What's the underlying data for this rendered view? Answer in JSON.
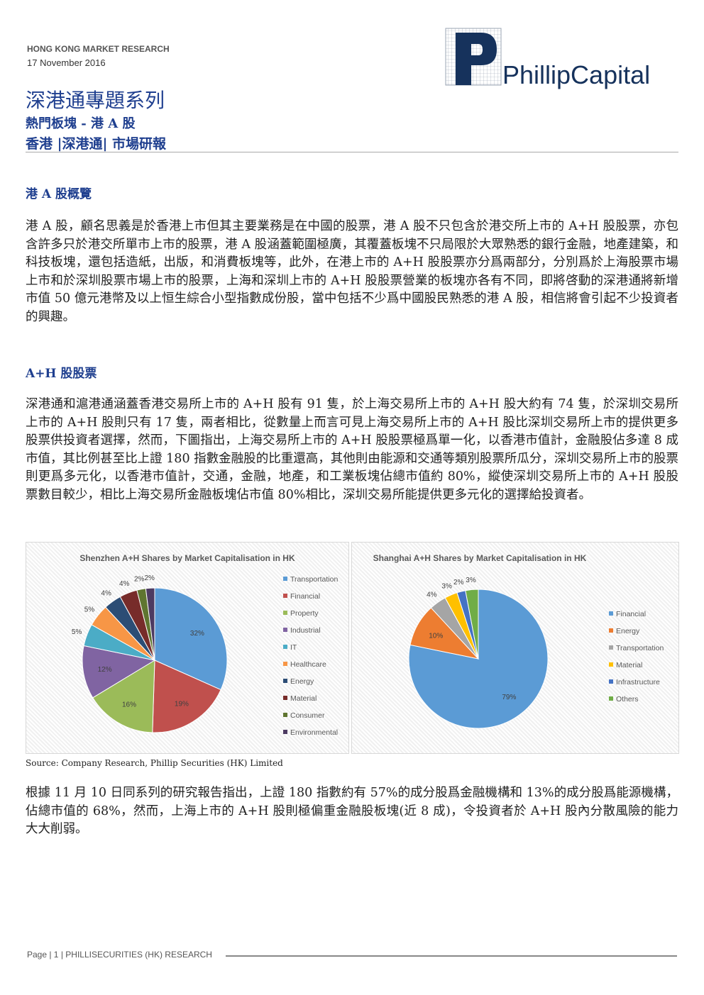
{
  "header": {
    "org": "HONG KONG MARKET RESEARCH",
    "date": "17 November 2016",
    "brand": "PhillipCapital",
    "title": "深港通專題系列",
    "subtitle": "熱門板塊 - 港 A 股",
    "tags": "香港 |深港通| 市場研報"
  },
  "sections": [
    {
      "heading": "港 A 股概覽",
      "paragraph": "港 A 股，顧名思義是於香港上市但其主要業務是在中國的股票，港 A 股不只包含於港交所上市的 A+H 股股票，亦包含許多只於港交所單市上市的股票，港 A 股涵蓋範圍極廣，其覆蓋板塊不只局限於大眾熟悉的銀行金融，地產建築，和科技板塊，還包括造紙，出版，和消費板塊等，此外，在港上市的 A+H 股股票亦分爲兩部分，分別爲於上海股票市場上市和於深圳股票市場上市的股票，上海和深圳上市的 A+H 股股票營業的板塊亦各有不同，即將啓動的深港通將新增市值 50 億元港幣及以上恒生綜合小型指數成份股，當中包括不少爲中國股民熟悉的港 A 股，相信將會引起不少投資者的興趣。"
    },
    {
      "heading": "A+H 股股票",
      "paragraph": "深港通和滬港通涵蓋香港交易所上市的 A+H 股有 91 隻，於上海交易所上市的 A+H 股大約有 74 隻，於深圳交易所上市的 A+H 股則只有 17 隻，兩者相比，從數量上而言可見上海交易所上市的 A+H 股比深圳交易所上市的提供更多股票供投資者選擇，然而，下圖指出，上海交易所上市的 A+H 股股票極爲單一化，以香港市值計，金融股佔多達 8 成市值，其比例甚至比上證 180 指數金融股的比重還高，其他則由能源和交通等類別股票所瓜分，深圳交易所上市的股票則更爲多元化，以香港市值計，交通，金融，地產，和工業板塊佔總市值約 80%，縱使深圳交易所上市的 A+H 股股票數目較少，相比上海交易所金融板塊佔市值 80%相比，深圳交易所能提供更多元化的選擇給投資者。"
    }
  ],
  "chart_data": [
    {
      "type": "pie",
      "title": "Shenzhen A+H Shares by Market Capitalisation in HK",
      "categories": [
        "Transportation",
        "Financial",
        "Property",
        "Industrial",
        "IT",
        "Healthcare",
        "Energy",
        "Material",
        "Consumer",
        "Environmental"
      ],
      "values": [
        32,
        19,
        16,
        12,
        5,
        5,
        4,
        4,
        2,
        2
      ],
      "value_labels": [
        "32%",
        "19%",
        "16%",
        "12%",
        "5%",
        "5%",
        "4%",
        "4%",
        "2%",
        "2%"
      ],
      "colors": [
        "#5b9bd5",
        "#c0504d",
        "#9bbb59",
        "#8064a2",
        "#4bacc6",
        "#f79646",
        "#2c4d75",
        "#772c2a",
        "#5f7530",
        "#4d3b62"
      ]
    },
    {
      "type": "pie",
      "title": "Shanghai A+H Shares by Market Capitalisation in HK",
      "categories": [
        "Financial",
        "Energy",
        "Transportation",
        "Material",
        "Infrastructure",
        "Others"
      ],
      "values": [
        79,
        10,
        4,
        3,
        2,
        3
      ],
      "value_labels": [
        "79%",
        "10%",
        "4%",
        "3%",
        "2%",
        "3%"
      ],
      "colors": [
        "#5b9bd5",
        "#ed7d31",
        "#a5a5a5",
        "#ffc000",
        "#4472c4",
        "#70ad47"
      ]
    }
  ],
  "source": "Source: Company Research, Phillip Securities (HK) Limited",
  "closing": "根據 11 月 10 日同系列的研究報告指出，上證 180 指數約有 57%的成分股爲金融機構和 13%的成分股爲能源機構，佔總市值的 68%，然而，上海上市的 A+H 股則極偏重金融股板塊(近 8 成)，令投資者於 A+H 股內分散風險的能力大大削弱。",
  "footer": "Page | 1 | PHILLISECURITIES (HK) RESEARCH"
}
